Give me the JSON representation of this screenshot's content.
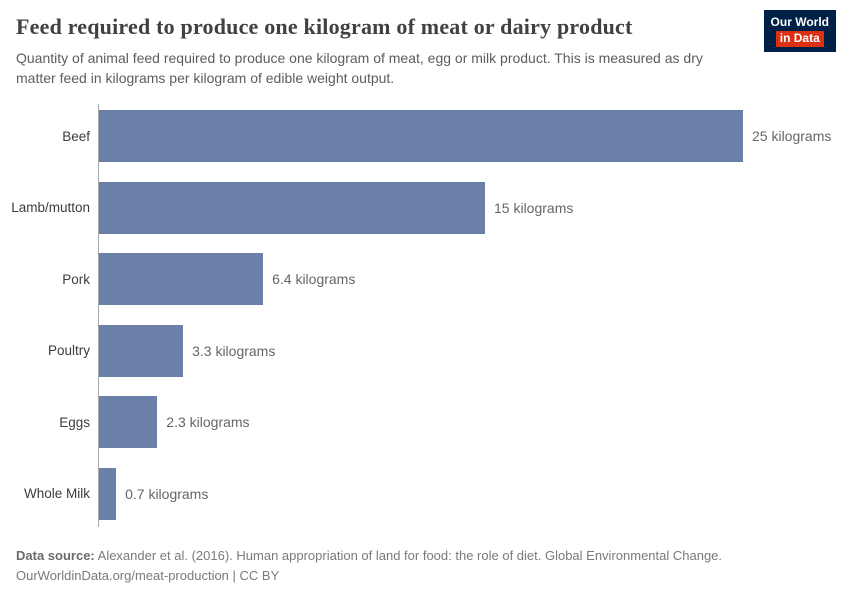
{
  "header": {
    "title": "Feed required to produce one kilogram of meat or dairy product",
    "subtitle": "Quantity of animal feed required to produce one kilogram of meat, egg or milk product. This is measured as dry matter feed in kilograms per kilogram of edible weight output.",
    "logo": {
      "line1": "Our World",
      "line2": "in Data",
      "bg_color": "#002147",
      "accent_color": "#dc3012"
    }
  },
  "chart_data": {
    "type": "bar",
    "orientation": "horizontal",
    "title": "Feed required to produce one kilogram of meat or dairy product",
    "categories": [
      "Beef",
      "Lamb/mutton",
      "Pork",
      "Poultry",
      "Eggs",
      "Whole Milk"
    ],
    "values": [
      25,
      15,
      6.4,
      3.3,
      2.3,
      0.7
    ],
    "value_labels": [
      "25 kilograms",
      "15 kilograms",
      "6.4 kilograms",
      "3.3 kilograms",
      "2.3 kilograms",
      "0.7 kilograms"
    ],
    "unit_suffix": " kilograms",
    "xlabel": "",
    "ylabel": "",
    "xlim": [
      0,
      25
    ],
    "grid": false,
    "legend": "none",
    "bar_color": "#6b80a8"
  },
  "footer": {
    "source_label": "Data source:",
    "source_text": " Alexander et al. (2016). Human appropriation of land for food: the role of diet. Global Environmental Change.",
    "note_link": "OurWorldinData.org/meat-production",
    "note_suffix": " | CC BY"
  }
}
